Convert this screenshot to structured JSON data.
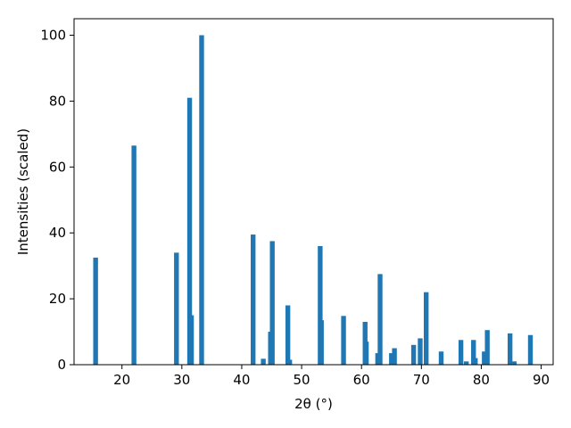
{
  "chart_data": {
    "type": "bar",
    "xlabel": "2θ (°)",
    "ylabel": "Intensities (scaled)",
    "xlim": [
      12,
      92
    ],
    "ylim": [
      0,
      105
    ],
    "xticks": [
      20,
      30,
      40,
      50,
      60,
      70,
      80,
      90
    ],
    "yticks": [
      0,
      20,
      40,
      60,
      80,
      100
    ],
    "color": "#1f77b4",
    "bar_width": 0.8,
    "grid": false,
    "x": [
      15.6,
      22.0,
      29.1,
      31.3,
      31.6,
      33.3,
      41.9,
      43.6,
      44.8,
      45.1,
      47.7,
      48.0,
      53.1,
      53.3,
      57.0,
      60.6,
      60.8,
      62.7,
      63.1,
      65.0,
      65.5,
      68.7,
      69.8,
      70.8,
      73.3,
      76.6,
      77.5,
      78.7,
      79.0,
      80.5,
      81.0,
      84.8,
      85.5,
      88.2
    ],
    "values": [
      32.5,
      66.5,
      34.0,
      81.0,
      15.0,
      100.0,
      39.5,
      1.8,
      10.0,
      37.5,
      18.0,
      1.5,
      36.0,
      13.5,
      14.8,
      13.0,
      7.0,
      3.5,
      27.5,
      3.5,
      5.0,
      6.0,
      8.0,
      22.0,
      4.0,
      7.5,
      1.0,
      7.5,
      2.0,
      4.0,
      10.5,
      9.5,
      1.0,
      9.0
    ]
  }
}
